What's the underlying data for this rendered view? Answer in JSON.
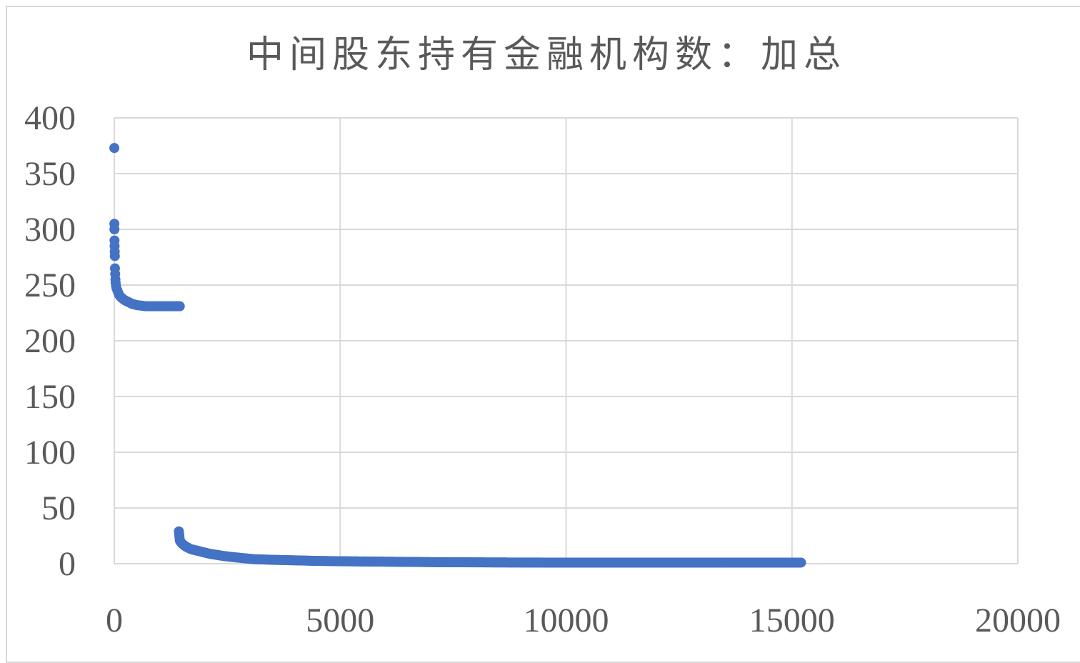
{
  "chart_data": {
    "type": "scatter",
    "title": "中间股东持有金融机构数：加总",
    "xlabel": "",
    "ylabel": "",
    "xlim": [
      0,
      20000
    ],
    "ylim": [
      0,
      400
    ],
    "x_ticks": [
      0,
      5000,
      10000,
      15000,
      20000
    ],
    "y_ticks": [
      0,
      50,
      100,
      150,
      200,
      250,
      300,
      350,
      400
    ],
    "grid": true,
    "legend": "none",
    "color": "#4472C4",
    "series": [
      {
        "points": [
          [
            1,
            373
          ],
          [
            2,
            305
          ],
          [
            3,
            300
          ],
          [
            5,
            290
          ],
          [
            7,
            285
          ],
          [
            10,
            280
          ],
          [
            12,
            276
          ],
          [
            15,
            265
          ],
          [
            20,
            260
          ],
          [
            25,
            255
          ],
          [
            30,
            252
          ],
          [
            40,
            249
          ],
          [
            50,
            247
          ],
          [
            70,
            245
          ],
          [
            90,
            243
          ],
          [
            110,
            241
          ],
          [
            130,
            240
          ],
          [
            150,
            239
          ],
          [
            180,
            238
          ],
          [
            210,
            237
          ],
          [
            250,
            236
          ],
          [
            300,
            235
          ],
          [
            350,
            234
          ],
          [
            400,
            233
          ],
          [
            450,
            232.5
          ],
          [
            500,
            232
          ],
          [
            600,
            231.5
          ],
          [
            700,
            231
          ],
          [
            800,
            231
          ],
          [
            900,
            231
          ],
          [
            1000,
            231
          ],
          [
            1100,
            231
          ],
          [
            1200,
            231
          ],
          [
            1300,
            231
          ],
          [
            1400,
            231
          ],
          [
            1450,
            231
          ],
          [
            1430,
            29
          ],
          [
            1435,
            27
          ],
          [
            1440,
            25
          ],
          [
            1445,
            23
          ],
          [
            1450,
            21
          ],
          [
            1460,
            20
          ],
          [
            1480,
            19
          ],
          [
            1500,
            18
          ],
          [
            1530,
            17
          ],
          [
            1560,
            16
          ],
          [
            1600,
            15
          ],
          [
            1650,
            14
          ],
          [
            1700,
            13
          ],
          [
            1800,
            12
          ],
          [
            1900,
            11
          ],
          [
            2000,
            10
          ],
          [
            2100,
            9
          ],
          [
            2250,
            8
          ],
          [
            2400,
            7
          ],
          [
            2600,
            6
          ],
          [
            2850,
            5
          ],
          [
            3100,
            4
          ],
          [
            3500,
            3.5
          ],
          [
            4000,
            3
          ],
          [
            4500,
            2.5
          ],
          [
            5000,
            2.2
          ],
          [
            5500,
            2
          ],
          [
            6000,
            1.8
          ],
          [
            6500,
            1.6
          ],
          [
            7000,
            1.4
          ],
          [
            7500,
            1.3
          ],
          [
            8000,
            1.2
          ],
          [
            8500,
            1.1
          ],
          [
            9000,
            1.05
          ],
          [
            9500,
            1
          ],
          [
            10000,
            1
          ],
          [
            10500,
            1
          ],
          [
            11000,
            1
          ],
          [
            11500,
            1
          ],
          [
            12000,
            1
          ],
          [
            12500,
            1
          ],
          [
            13000,
            1
          ],
          [
            13500,
            1
          ],
          [
            14000,
            1
          ],
          [
            14500,
            1
          ],
          [
            15000,
            1
          ],
          [
            15200,
            1
          ]
        ]
      }
    ]
  }
}
